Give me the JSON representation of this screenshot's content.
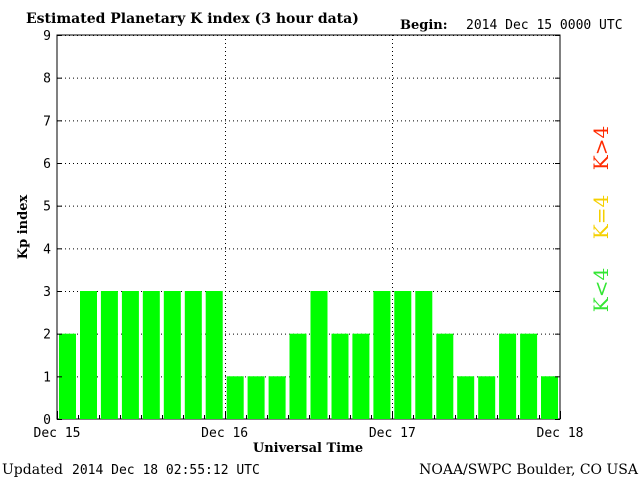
{
  "chart_data": {
    "type": "bar",
    "title": "Estimated Planetary K index (3 hour data)",
    "begin_label": "Begin:",
    "begin_value": "2014 Dec 15 0000 UTC",
    "ylabel": "Kp index",
    "xlabel": "Universal Time",
    "ylim": [
      0,
      9
    ],
    "yticks": [
      "0",
      "1",
      "2",
      "3",
      "4",
      "5",
      "6",
      "7",
      "8",
      "9"
    ],
    "xtick_labels": [
      "Dec 15",
      "Dec 16",
      "Dec 17",
      "Dec 18"
    ],
    "grid": true,
    "values": [
      2,
      3,
      3,
      3,
      3,
      3,
      3,
      3,
      1,
      1,
      1,
      2,
      3,
      2,
      2,
      3,
      3,
      3,
      2,
      1,
      1,
      2,
      2,
      1
    ],
    "bar_color": "#00ff00",
    "legend": [
      {
        "label": "K<4",
        "color": "#33e633"
      },
      {
        "label": "K=4",
        "color": "#f5d000"
      },
      {
        "label": "K>4",
        "color": "#ff2a00"
      }
    ]
  },
  "footer": {
    "updated_label": "Updated",
    "updated_value": "2014 Dec 18 02:55:12 UTC",
    "source": "NOAA/SWPC Boulder, CO USA"
  }
}
